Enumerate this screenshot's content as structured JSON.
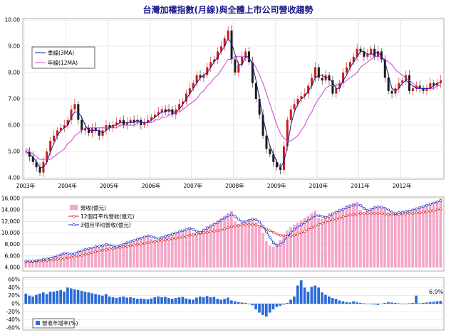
{
  "title": "台灣加權指數(月線)與全體上市公司營收趨勢",
  "chart_data": [
    {
      "type": "candlestick",
      "legend": [
        "季線(3MA)",
        "年線(12MA)"
      ],
      "legend_position": "top-left",
      "y_ticks": [
        "10.00",
        "9.00",
        "8.00",
        "7.00",
        "6.00",
        "5.00",
        "4.00"
      ],
      "ylim": [
        4.0,
        10.0
      ],
      "x_ticks": [
        "2003年",
        "2004年",
        "2005年",
        "2006年",
        "2007年",
        "2008年",
        "2009年",
        "2010年",
        "2011年",
        "2012年"
      ],
      "x_start": "2003-01",
      "x_end": "2012-12",
      "monthly_close": [
        5.0,
        4.8,
        4.6,
        4.4,
        4.2,
        4.6,
        5.0,
        5.4,
        5.6,
        5.8,
        5.9,
        6.0,
        6.2,
        6.6,
        6.8,
        6.2,
        5.8,
        5.9,
        5.7,
        5.9,
        5.8,
        5.6,
        5.8,
        6.0,
        5.9,
        6.0,
        6.1,
        6.2,
        6.0,
        6.1,
        6.2,
        6.1,
        6.2,
        6.0,
        6.1,
        6.2,
        6.3,
        6.4,
        6.5,
        6.6,
        6.5,
        6.6,
        6.4,
        6.6,
        6.8,
        6.9,
        7.2,
        7.4,
        7.6,
        7.9,
        7.8,
        7.9,
        8.2,
        8.4,
        8.5,
        8.8,
        9.0,
        9.3,
        9.6,
        8.5,
        8.0,
        8.3,
        8.6,
        8.8,
        8.4,
        7.6,
        7.0,
        6.4,
        5.6,
        5.1,
        4.9,
        4.6,
        4.4,
        4.3,
        5.2,
        6.2,
        6.6,
        6.8,
        7.0,
        7.1,
        7.2,
        7.5,
        7.8,
        8.2,
        7.8,
        7.7,
        7.9,
        7.7,
        7.2,
        7.4,
        7.6,
        8.0,
        8.2,
        8.4,
        8.6,
        8.9,
        8.8,
        8.6,
        8.7,
        8.9,
        8.6,
        8.8,
        8.5,
        7.8,
        7.3,
        7.2,
        7.4,
        7.6,
        7.7,
        7.9,
        7.3,
        7.4,
        7.5,
        7.4,
        7.3,
        7.4,
        7.6,
        7.5,
        7.6,
        7.7
      ],
      "ma3": [
        5.0,
        4.9,
        4.8,
        4.6,
        4.4,
        4.4,
        4.6,
        5.0,
        5.3,
        5.6,
        5.8,
        5.9,
        6.0,
        6.3,
        6.5,
        6.5,
        6.3,
        6.0,
        5.8,
        5.8,
        5.8,
        5.8,
        5.7,
        5.8,
        5.9,
        6.0,
        6.0,
        6.1,
        6.1,
        6.1,
        6.1,
        6.1,
        6.2,
        6.1,
        6.1,
        6.1,
        6.2,
        6.3,
        6.4,
        6.5,
        6.5,
        6.6,
        6.5,
        6.5,
        6.6,
        6.8,
        7.0,
        7.2,
        7.4,
        7.6,
        7.8,
        7.9,
        8.0,
        8.2,
        8.4,
        8.6,
        8.8,
        9.0,
        9.3,
        9.1,
        8.7,
        8.3,
        8.3,
        8.6,
        8.6,
        8.3,
        7.7,
        7.0,
        6.3,
        5.7,
        5.2,
        4.9,
        4.6,
        4.4,
        4.6,
        5.2,
        6.0,
        6.5,
        6.8,
        7.0,
        7.1,
        7.3,
        7.5,
        7.8,
        7.9,
        7.9,
        7.8,
        7.8,
        7.6,
        7.4,
        7.4,
        7.7,
        7.9,
        8.2,
        8.4,
        8.6,
        8.8,
        8.8,
        8.7,
        8.7,
        8.7,
        8.8,
        8.6,
        8.4,
        7.9,
        7.4,
        7.3,
        7.4,
        7.6,
        7.7,
        7.6,
        7.5,
        7.4,
        7.4,
        7.4,
        7.4,
        7.4,
        7.5,
        7.6,
        7.6
      ],
      "ma12": [
        5.1,
        5.0,
        4.9,
        4.8,
        4.7,
        4.7,
        4.7,
        4.7,
        4.8,
        4.9,
        5.0,
        5.1,
        5.3,
        5.4,
        5.6,
        5.7,
        5.8,
        5.9,
        5.9,
        5.9,
        5.9,
        5.9,
        5.9,
        5.9,
        5.9,
        5.9,
        5.9,
        6.0,
        6.0,
        6.0,
        6.0,
        6.0,
        6.1,
        6.1,
        6.1,
        6.1,
        6.1,
        6.2,
        6.2,
        6.3,
        6.3,
        6.4,
        6.4,
        6.5,
        6.5,
        6.6,
        6.7,
        6.8,
        6.9,
        7.0,
        7.2,
        7.3,
        7.5,
        7.6,
        7.8,
        7.9,
        8.1,
        8.3,
        8.5,
        8.5,
        8.6,
        8.6,
        8.6,
        8.6,
        8.5,
        8.4,
        8.2,
        7.9,
        7.6,
        7.2,
        6.8,
        6.4,
        6.0,
        5.7,
        5.5,
        5.4,
        5.4,
        5.5,
        5.6,
        5.8,
        6.0,
        6.3,
        6.5,
        6.8,
        7.0,
        7.2,
        7.4,
        7.5,
        7.5,
        7.5,
        7.6,
        7.6,
        7.7,
        7.8,
        7.9,
        8.0,
        8.2,
        8.3,
        8.4,
        8.5,
        8.6,
        8.6,
        8.6,
        8.5,
        8.4,
        8.3,
        8.1,
        8.0,
        7.9,
        7.8,
        7.7,
        7.6,
        7.5,
        7.4,
        7.4,
        7.4,
        7.4,
        7.4,
        7.5,
        7.5
      ]
    },
    {
      "type": "bar-line",
      "legend": [
        "營收(億元)",
        "12個月平均營收(億元)",
        "3個月平均營收(億元)"
      ],
      "legend_position": "top-left",
      "y_ticks": [
        "16,000",
        "14,000",
        "12,000",
        "10,000",
        "8,000",
        "6,000",
        "4,000"
      ],
      "ylim": [
        4000,
        16000
      ],
      "revenue": [
        5200,
        5000,
        5100,
        5200,
        5300,
        5400,
        5500,
        5700,
        5900,
        6100,
        6300,
        6600,
        6200,
        6000,
        6500,
        6800,
        7000,
        7200,
        7300,
        7500,
        7600,
        7800,
        7900,
        8200,
        7600,
        7400,
        7800,
        8000,
        8200,
        8500,
        8600,
        8800,
        9000,
        9300,
        9400,
        9700,
        9000,
        8800,
        9200,
        9400,
        9600,
        9800,
        10000,
        10200,
        10400,
        10600,
        10700,
        11000,
        10000,
        9800,
        10400,
        10800,
        11200,
        11500,
        11800,
        12200,
        12600,
        13000,
        13400,
        13800,
        12000,
        11600,
        12000,
        12200,
        12400,
        12600,
        11800,
        11000,
        10000,
        8600,
        7800,
        7600,
        8200,
        8800,
        9800,
        10400,
        11000,
        11400,
        11800,
        12200,
        12600,
        13000,
        13400,
        13800,
        12600,
        12400,
        13000,
        13400,
        13600,
        13800,
        14200,
        14400,
        14800,
        15000,
        15200,
        15400,
        14000,
        13600,
        14200,
        14400,
        14600,
        14600,
        14400,
        14000,
        13600,
        13200,
        13400,
        13800,
        13600,
        13800,
        14000,
        14200,
        14400,
        14600,
        14800,
        15000,
        15200,
        15400,
        15600,
        16000
      ],
      "avg12": [
        5000,
        5000,
        5000,
        5100,
        5100,
        5100,
        5200,
        5300,
        5300,
        5400,
        5500,
        5600,
        5700,
        5800,
        5900,
        6000,
        6100,
        6300,
        6400,
        6600,
        6700,
        6900,
        7000,
        7100,
        7200,
        7300,
        7400,
        7500,
        7600,
        7700,
        7800,
        7900,
        8000,
        8100,
        8200,
        8300,
        8400,
        8500,
        8600,
        8700,
        8800,
        8900,
        9000,
        9100,
        9200,
        9300,
        9400,
        9600,
        9700,
        9800,
        9900,
        10000,
        10100,
        10200,
        10300,
        10400,
        10500,
        10700,
        10900,
        11100,
        11200,
        11300,
        11400,
        11500,
        11500,
        11500,
        11400,
        11200,
        11000,
        10700,
        10400,
        10100,
        9800,
        9600,
        9500,
        9500,
        9500,
        9600,
        9800,
        10000,
        10300,
        10600,
        10900,
        11200,
        11500,
        11700,
        11900,
        12100,
        12300,
        12400,
        12600,
        12800,
        13000,
        13100,
        13200,
        13300,
        13400,
        13400,
        13400,
        13400,
        13400,
        13400,
        13400,
        13300,
        13200,
        13200,
        13200,
        13200,
        13300,
        13300,
        13400,
        13400,
        13500,
        13500,
        13600,
        13700,
        13800,
        13900,
        14000,
        14200
      ],
      "avg3": [
        5100,
        5100,
        5100,
        5200,
        5300,
        5400,
        5500,
        5600,
        5800,
        6000,
        6200,
        6500,
        6400,
        6300,
        6400,
        6700,
        6900,
        7100,
        7300,
        7400,
        7600,
        7700,
        7800,
        8000,
        7900,
        7700,
        7600,
        7800,
        8000,
        8300,
        8500,
        8700,
        8900,
        9100,
        9300,
        9500,
        9400,
        9200,
        9000,
        9200,
        9400,
        9600,
        9800,
        10000,
        10200,
        10400,
        10600,
        10800,
        10600,
        10300,
        10100,
        10400,
        10800,
        11200,
        11500,
        11800,
        12200,
        12600,
        13000,
        13200,
        12900,
        12400,
        11900,
        12000,
        12200,
        12400,
        12300,
        11900,
        11200,
        10200,
        9200,
        8300,
        7800,
        8000,
        8600,
        9400,
        10000,
        10600,
        11000,
        11400,
        11800,
        12200,
        12600,
        13000,
        13000,
        12900,
        12700,
        12900,
        13300,
        13600,
        13900,
        14100,
        14400,
        14600,
        14800,
        15000,
        14800,
        14300,
        13900,
        14000,
        14400,
        14500,
        14500,
        14300,
        14000,
        13600,
        13400,
        13500,
        13600,
        13700,
        13800,
        14000,
        14200,
        14400,
        14600,
        14800,
        15000,
        15200,
        15400,
        15600
      ]
    },
    {
      "type": "bar",
      "legend": [
        "營收年增率(%)"
      ],
      "legend_position": "bottom-left",
      "y_ticks": [
        "60%",
        "40%",
        "20%",
        "0%",
        "-20%",
        "-40%",
        "-60%"
      ],
      "ylim": [
        -60,
        60
      ],
      "last_label": "6.9%",
      "yoy": [
        25,
        20,
        18,
        22,
        25,
        28,
        24,
        30,
        30,
        32,
        34,
        30,
        40,
        38,
        36,
        34,
        32,
        30,
        28,
        26,
        24,
        22,
        20,
        24,
        18,
        16,
        14,
        16,
        18,
        15,
        16,
        14,
        12,
        13,
        12,
        11,
        13,
        16,
        18,
        16,
        17,
        14,
        12,
        14,
        16,
        17,
        13,
        11,
        10,
        15,
        18,
        16,
        19,
        16,
        17,
        12,
        10,
        12,
        15,
        8,
        6,
        4,
        3,
        2,
        -1,
        -4,
        -14,
        -22,
        -28,
        -32,
        -22,
        -14,
        -8,
        -5,
        -2,
        2,
        10,
        18,
        45,
        58,
        40,
        30,
        42,
        45,
        40,
        28,
        22,
        18,
        14,
        12,
        8,
        6,
        4,
        3,
        6,
        4,
        2,
        1,
        0,
        -1,
        -2,
        -3,
        0,
        2,
        4,
        3,
        2,
        1,
        -1,
        0,
        1,
        2,
        20,
        1,
        2,
        3,
        4,
        5,
        6,
        6.9
      ]
    }
  ]
}
